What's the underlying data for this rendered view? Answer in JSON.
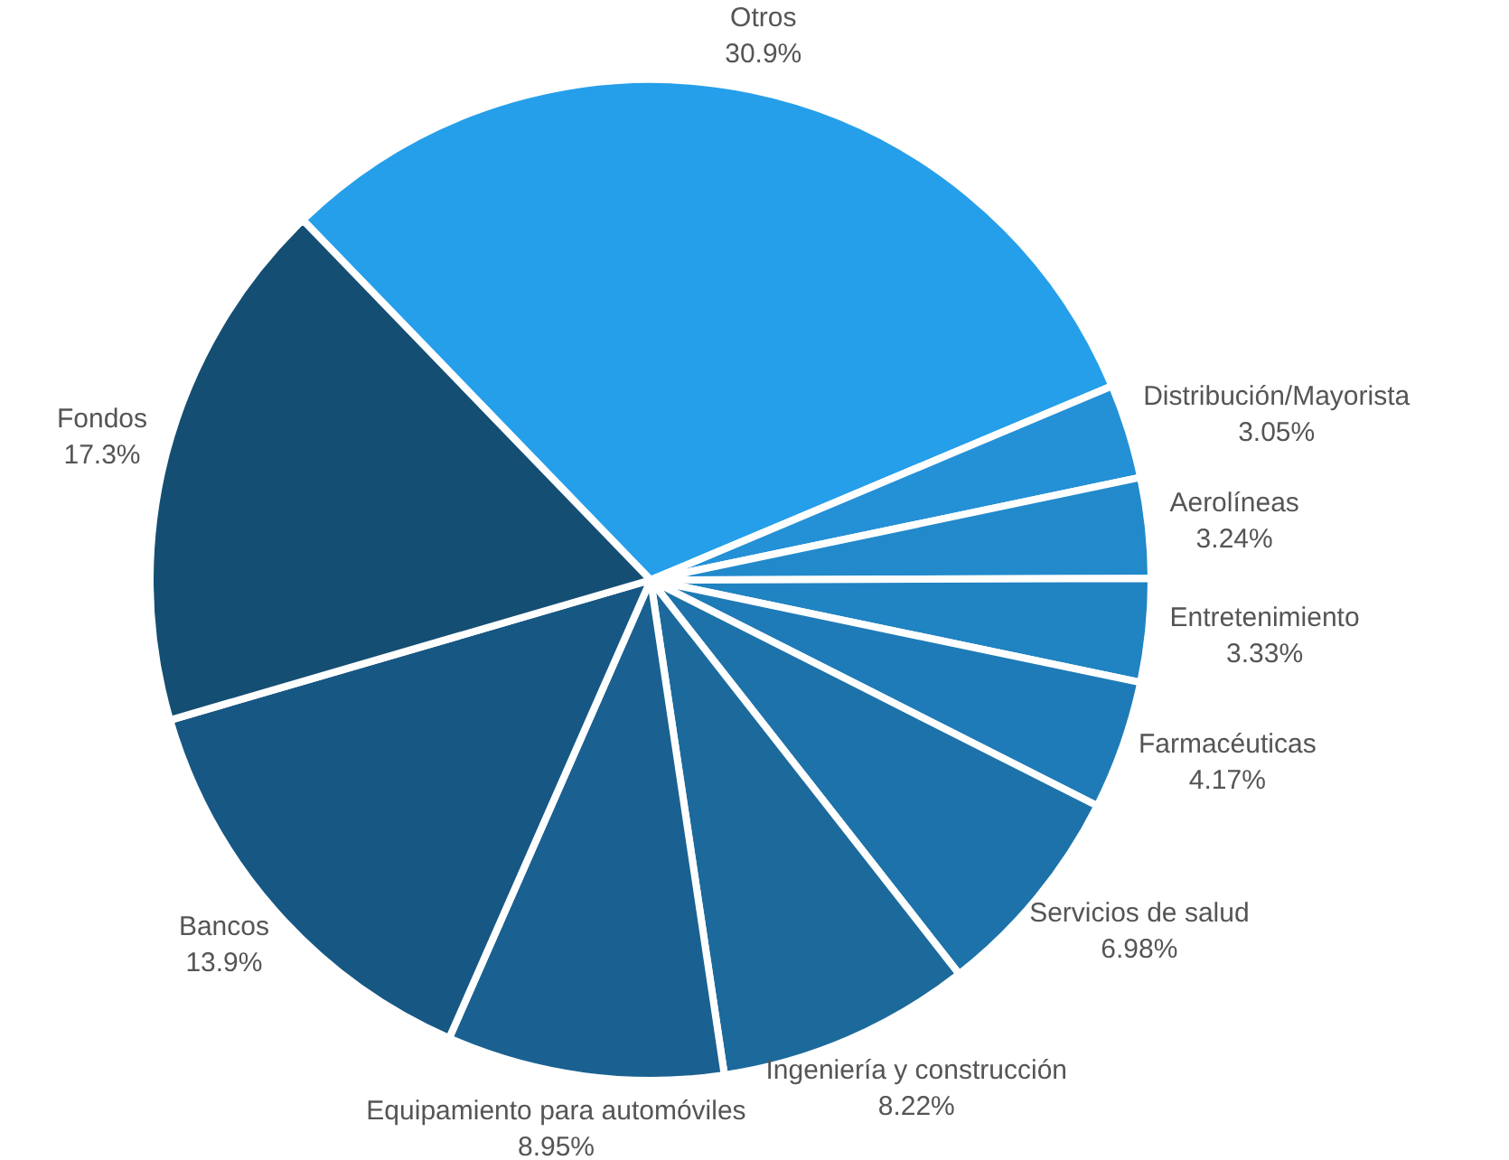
{
  "chart_data": {
    "type": "pie",
    "categories": [
      "Otros",
      "Distribución/Mayorista",
      "Aerolíneas",
      "Entretenimiento",
      "Farmacéuticas",
      "Servicios de salud",
      "Ingeniería y construcción",
      "Equipamiento para automóviles",
      "Bancos",
      "Fondos"
    ],
    "values": [
      30.9,
      3.05,
      3.24,
      3.33,
      4.17,
      6.98,
      8.22,
      8.95,
      13.9,
      17.3
    ],
    "value_labels": [
      "30.9%",
      "3.05%",
      "3.24%",
      "3.33%",
      "4.17%",
      "6.98%",
      "8.22%",
      "8.95%",
      "13.9%",
      "17.3%"
    ],
    "colors": [
      "#269fea",
      "#2490d6",
      "#228acb",
      "#2083c2",
      "#1f7bb7",
      "#1d72a9",
      "#1c6a9c",
      "#1a6191",
      "#175783",
      "#154e73"
    ],
    "legend": false
  }
}
